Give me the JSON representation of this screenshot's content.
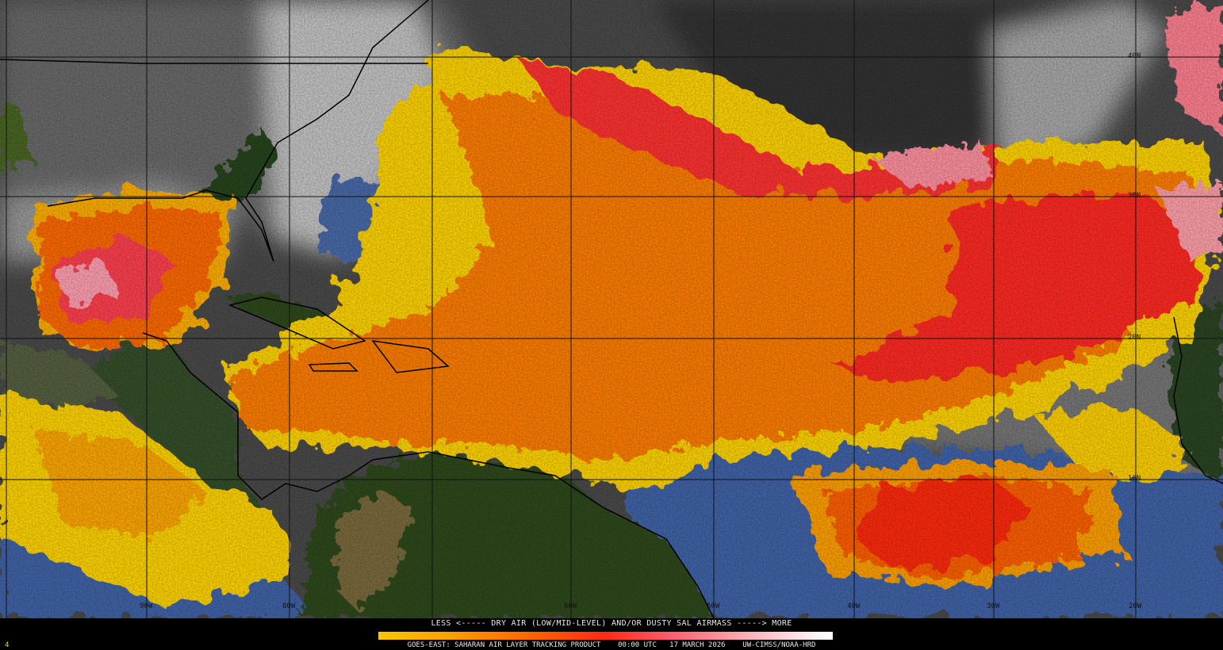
{
  "legend": {
    "title": "LESS <----- DRY AIR (LOW/MID-LEVEL) AND/OR DUSTY SAL AIRMASS -----> MORE",
    "scale_low": "LESS",
    "scale_high": "MORE",
    "colors": [
      "#ffc400",
      "#ffa000",
      "#ff7000",
      "#ff2a10",
      "#ff6070",
      "#ffa8b0",
      "#ffe0e4",
      "#ffffff"
    ]
  },
  "product": {
    "name": "GOES-EAST: SAHARAN AIR LAYER TRACKING PRODUCT",
    "time": "00:00 UTC",
    "date": "17 MARCH 2026",
    "source": "UW-CIMSS/NOAA-HRD"
  },
  "frame_number": "4",
  "grid": {
    "latitude_labels": [
      "40N",
      "30N",
      "20N",
      "10N"
    ],
    "longitude_labels": [
      "90W",
      "80W",
      "60W",
      "50W",
      "40W",
      "30W",
      "20W"
    ]
  },
  "map_colors": {
    "clear_ocean": "#3f63a8",
    "land": "#2e4a1c",
    "clouds": "#c8c8c8",
    "dry_air_low": "#ffd800",
    "dry_air_mid": "#ff7a00",
    "dry_air_high": "#ff2a20",
    "dry_air_max": "#ffb0b8"
  }
}
